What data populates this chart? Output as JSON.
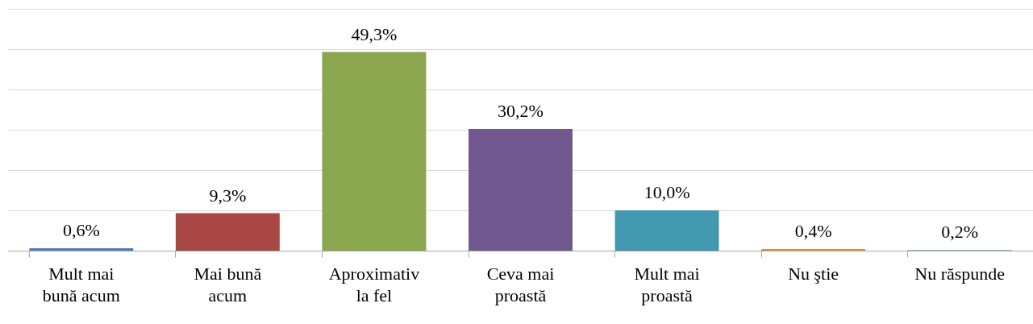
{
  "chart_data": {
    "type": "bar",
    "categories": [
      "Mult mai bună acum",
      "Mai bună acum",
      "Aproximativ la fel",
      "Ceva mai proastă",
      "Mult mai proastă",
      "Nu ştie",
      "Nu răspunde"
    ],
    "values": [
      0.6,
      9.3,
      49.3,
      30.2,
      10.0,
      0.4,
      0.2
    ],
    "colors": [
      "#4a7ebb",
      "#a94744",
      "#8aa64e",
      "#71588f",
      "#4198af",
      "#e48d3e",
      "#94b6d2"
    ],
    "value_labels": [
      "0,6%",
      "9,3%",
      "49,3%",
      "30,2%",
      "10,0%",
      "0,4%",
      "0,2%"
    ],
    "ylim": [
      0,
      60
    ],
    "yticks": [
      {
        "value": 0,
        "label": null
      },
      {
        "value": 10,
        "label": null
      },
      {
        "value": 20,
        "label": null
      },
      {
        "value": 30,
        "label": null
      },
      {
        "value": 40,
        "label": null
      },
      {
        "value": 50,
        "label": null
      },
      {
        "value": 60,
        "label": null
      }
    ],
    "grid": "y",
    "tick_labels": "x"
  }
}
